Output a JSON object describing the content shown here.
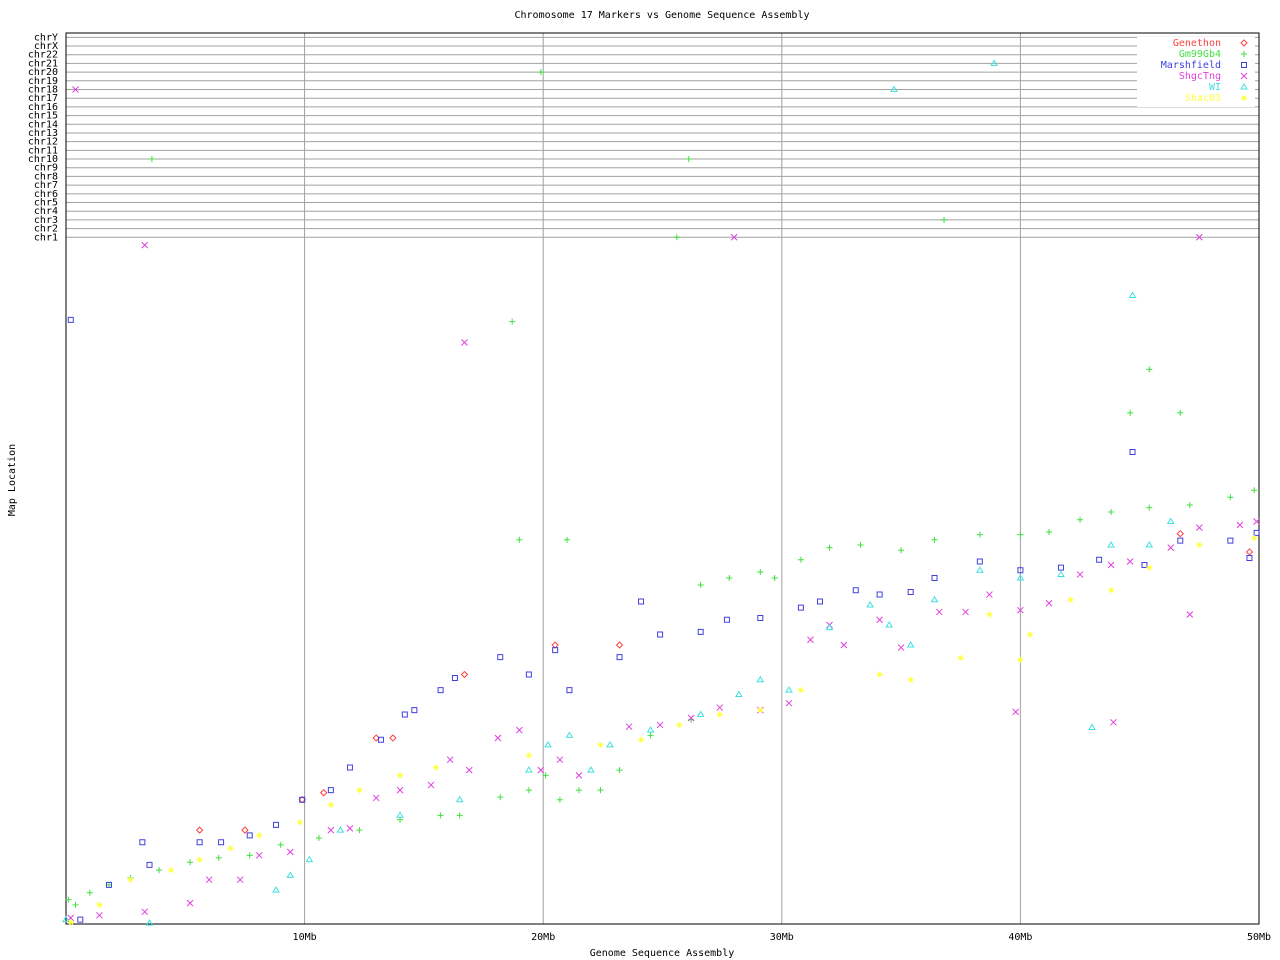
{
  "chart_data": {
    "type": "scatter",
    "title": "Chromosome 17 Markers vs Genome Sequence Assembly",
    "x_label": "Genome Sequence Assembly",
    "y_label": "Map Location",
    "xlim": [
      0,
      50
    ],
    "xticks": [
      {
        "value": 10,
        "label": "10Mb"
      },
      {
        "value": 20,
        "label": "20Mb"
      },
      {
        "value": 30,
        "label": "30Mb"
      },
      {
        "value": 40,
        "label": "40Mb"
      },
      {
        "value": 50,
        "label": "50Mb"
      }
    ],
    "ylim": [
      0,
      102.5
    ],
    "yticks": [
      {
        "value": 79,
        "label": "chr1"
      },
      {
        "value": 80,
        "label": "chr2"
      },
      {
        "value": 81,
        "label": "chr3"
      },
      {
        "value": 82,
        "label": "chr4"
      },
      {
        "value": 83,
        "label": "chr5"
      },
      {
        "value": 84,
        "label": "chr6"
      },
      {
        "value": 85,
        "label": "chr7"
      },
      {
        "value": 86,
        "label": "chr8"
      },
      {
        "value": 87,
        "label": "chr9"
      },
      {
        "value": 88,
        "label": "chr10"
      },
      {
        "value": 89,
        "label": "chr11"
      },
      {
        "value": 90,
        "label": "chr12"
      },
      {
        "value": 91,
        "label": "chr13"
      },
      {
        "value": 92,
        "label": "chr14"
      },
      {
        "value": 93,
        "label": "chr15"
      },
      {
        "value": 94,
        "label": "chr16"
      },
      {
        "value": 95,
        "label": "chr17"
      },
      {
        "value": 96,
        "label": "chr18"
      },
      {
        "value": 97,
        "label": "chr19"
      },
      {
        "value": 98,
        "label": "chr20"
      },
      {
        "value": 99,
        "label": "chr21"
      },
      {
        "value": 100,
        "label": "chr22"
      },
      {
        "value": 101,
        "label": "chrX"
      },
      {
        "value": 102,
        "label": "chrY"
      }
    ],
    "grid": true,
    "legend": "top-right",
    "series": [
      {
        "name": "Genethon",
        "color": "#ff4040",
        "x": [
          5.6,
          7.5,
          9.9,
          10.8,
          13.0,
          13.7,
          16.7,
          20.5,
          23.2,
          46.7,
          49.6
        ],
        "values": [
          10.8,
          10.8,
          14.3,
          15.1,
          21.4,
          21.4,
          28.7,
          32.1,
          32.1,
          44.9,
          42.8
        ]
      },
      {
        "name": "Gm99Gb4",
        "color": "#40e040",
        "x": [
          0.1,
          0.4,
          1.0,
          1.8,
          2.7,
          3.9,
          5.2,
          6.4,
          7.7,
          9.0,
          10.6,
          12.3,
          14.0,
          15.7,
          16.5,
          18.2,
          19.4,
          20.1,
          20.7,
          21.5,
          22.4,
          23.2,
          24.5,
          26.2,
          26.6,
          27.8,
          29.1,
          29.7,
          30.8,
          32.0,
          33.3,
          35.0,
          36.4,
          38.3,
          40.0,
          41.2,
          42.5,
          43.8,
          45.4,
          47.1,
          48.8,
          49.8,
          19.0,
          21.0,
          44.6,
          45.4,
          46.7,
          18.7,
          3.6,
          26.1,
          25.6,
          36.8,
          19.9
        ],
        "values": [
          2.8,
          2.2,
          3.6,
          4.5,
          5.3,
          6.2,
          7.1,
          7.6,
          7.9,
          9.1,
          9.9,
          10.8,
          12.0,
          12.5,
          12.5,
          14.6,
          15.4,
          17.1,
          14.3,
          15.4,
          15.4,
          17.7,
          21.7,
          23.5,
          39.0,
          39.8,
          40.5,
          39.8,
          41.9,
          43.3,
          43.6,
          43.0,
          44.2,
          44.8,
          44.8,
          45.1,
          46.5,
          47.4,
          47.9,
          48.2,
          49.1,
          49.9,
          44.2,
          44.2,
          58.8,
          63.8,
          58.8,
          69.3,
          88,
          88,
          79,
          81,
          98
        ]
      },
      {
        "name": "Marshfield",
        "color": "#4040e0",
        "x": [
          0.2,
          0.6,
          1.8,
          3.2,
          3.5,
          5.6,
          6.5,
          7.7,
          8.8,
          9.9,
          11.1,
          11.9,
          13.2,
          14.2,
          14.6,
          15.7,
          16.3,
          18.2,
          19.4,
          20.5,
          21.1,
          23.2,
          24.1,
          24.9,
          26.6,
          27.7,
          29.1,
          30.8,
          31.6,
          33.1,
          34.1,
          35.4,
          36.4,
          38.3,
          40.0,
          41.7,
          43.3,
          44.7,
          45.2,
          46.7,
          48.8,
          49.6,
          49.9
        ],
        "values": [
          69.5,
          0.5,
          4.5,
          9.4,
          6.8,
          9.4,
          9.4,
          10.2,
          11.4,
          14.3,
          15.4,
          18.0,
          21.2,
          24.1,
          24.6,
          26.9,
          28.3,
          30.7,
          28.7,
          31.5,
          26.9,
          30.7,
          37.1,
          33.3,
          33.6,
          35.0,
          35.2,
          36.4,
          37.1,
          38.4,
          37.9,
          38.2,
          39.8,
          41.7,
          40.7,
          41.0,
          41.9,
          54.3,
          41.3,
          44.1,
          44.1,
          42.1,
          45.0
        ]
      },
      {
        "name": "ShgcTng",
        "color": "#e040e0",
        "x": [
          0.4,
          3.3,
          16.7,
          0.2,
          1.4,
          3.3,
          5.2,
          6.0,
          7.3,
          8.1,
          9.4,
          11.1,
          11.9,
          13.0,
          14.0,
          15.3,
          16.1,
          16.9,
          18.1,
          19.0,
          19.9,
          20.7,
          21.5,
          23.6,
          24.9,
          26.2,
          27.4,
          29.1,
          30.3,
          31.2,
          32.0,
          32.6,
          34.1,
          35.0,
          36.6,
          37.7,
          38.7,
          39.8,
          40.0,
          41.2,
          42.5,
          43.8,
          43.9,
          44.6,
          46.3,
          47.1,
          47.5,
          49.2,
          49.9,
          28.0,
          47.5
        ],
        "values": [
          96,
          78.1,
          66.9,
          0.7,
          1.0,
          1.4,
          2.4,
          5.1,
          5.1,
          7.9,
          8.3,
          10.8,
          11.0,
          14.5,
          15.4,
          16.0,
          18.9,
          17.7,
          21.4,
          22.3,
          17.7,
          18.9,
          17.1,
          22.7,
          22.9,
          23.7,
          24.9,
          24.6,
          25.4,
          32.7,
          34.4,
          32.1,
          35.0,
          31.8,
          35.9,
          35.9,
          37.9,
          24.4,
          36.1,
          36.9,
          40.2,
          41.3,
          23.2,
          41.7,
          43.3,
          35.6,
          45.6,
          45.9,
          46.3,
          79,
          79
        ]
      },
      {
        "name": "WI",
        "color": "#40e0e0",
        "x": [
          0.0,
          3.5,
          8.8,
          9.4,
          10.2,
          11.5,
          14.0,
          16.5,
          19.4,
          20.2,
          21.1,
          22.0,
          22.8,
          24.5,
          26.6,
          28.2,
          29.1,
          30.3,
          32.0,
          33.7,
          34.5,
          35.4,
          36.4,
          38.3,
          40.0,
          41.7,
          43.0,
          43.8,
          44.7,
          45.4,
          46.3,
          34.7,
          38.9
        ],
        "values": [
          0.5,
          0.1,
          3.9,
          5.6,
          7.4,
          10.8,
          12.5,
          14.3,
          17.7,
          20.6,
          21.7,
          17.7,
          20.6,
          22.3,
          24.1,
          26.4,
          28.1,
          26.9,
          34.1,
          36.7,
          34.4,
          32.1,
          37.3,
          40.7,
          39.8,
          40.2,
          22.6,
          43.6,
          72.3,
          43.6,
          46.3,
          96,
          99
        ]
      },
      {
        "name": "Shac03",
        "color": "#ffff40",
        "x": [
          0.2,
          1.4,
          2.7,
          4.4,
          5.6,
          6.9,
          8.1,
          9.8,
          11.1,
          12.3,
          14.0,
          15.5,
          19.4,
          22.4,
          24.1,
          25.7,
          27.4,
          29.1,
          30.8,
          34.1,
          35.4,
          37.5,
          38.7,
          40.0,
          40.4,
          42.1,
          43.8,
          45.4,
          47.5,
          49.8
        ],
        "values": [
          0.2,
          2.2,
          5.1,
          6.2,
          7.4,
          8.7,
          10.2,
          11.7,
          13.7,
          15.4,
          17.1,
          18.0,
          19.4,
          20.6,
          21.2,
          22.9,
          24.1,
          24.6,
          26.9,
          28.7,
          28.1,
          30.6,
          35.6,
          30.4,
          33.3,
          37.3,
          38.4,
          41.0,
          43.6,
          44.4
        ]
      }
    ]
  }
}
